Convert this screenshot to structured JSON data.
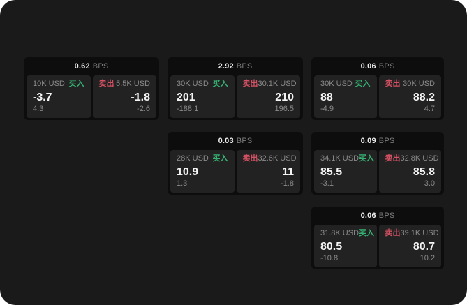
{
  "labels": {
    "bps_unit": "BPS",
    "buy": "买入",
    "sell": "卖出"
  },
  "colors": {
    "background": "#1a1a1a",
    "card": "#0d0d0d",
    "panel": "#222222",
    "buy_green": "#36b173",
    "sell_red": "#d45063",
    "text_primary": "#ededed",
    "text_muted": "#8a8a8a"
  },
  "cards": [
    {
      "bps": "0.62",
      "buy": {
        "amount": "10K USD",
        "price": "-3.7",
        "change": "4.3"
      },
      "sell": {
        "amount": "5.5K USD",
        "price": "-1.8",
        "change": "-2.6"
      }
    },
    {
      "bps": "2.92",
      "buy": {
        "amount": "30K USD",
        "price": "201",
        "change": "-188.1"
      },
      "sell": {
        "amount": "30.1K USD",
        "price": "210",
        "change": "196.5"
      }
    },
    {
      "bps": "0.06",
      "buy": {
        "amount": "30K USD",
        "price": "88",
        "change": "-4.9"
      },
      "sell": {
        "amount": "30K USD",
        "price": "88.2",
        "change": "4.7"
      }
    },
    {
      "bps": "0.03",
      "buy": {
        "amount": "28K USD",
        "price": "10.9",
        "change": "1.3"
      },
      "sell": {
        "amount": "32.6K USD",
        "price": "11",
        "change": "-1.8"
      }
    },
    {
      "bps": "0.09",
      "buy": {
        "amount": "34.1K USD",
        "price": "85.5",
        "change": "-3.1"
      },
      "sell": {
        "amount": "32.8K USD",
        "price": "85.8",
        "change": "3.0"
      }
    },
    {
      "bps": "0.06",
      "buy": {
        "amount": "31.8K USD",
        "price": "80.5",
        "change": "-10.8"
      },
      "sell": {
        "amount": "39.1K USD",
        "price": "80.7",
        "change": "10.2"
      }
    }
  ]
}
